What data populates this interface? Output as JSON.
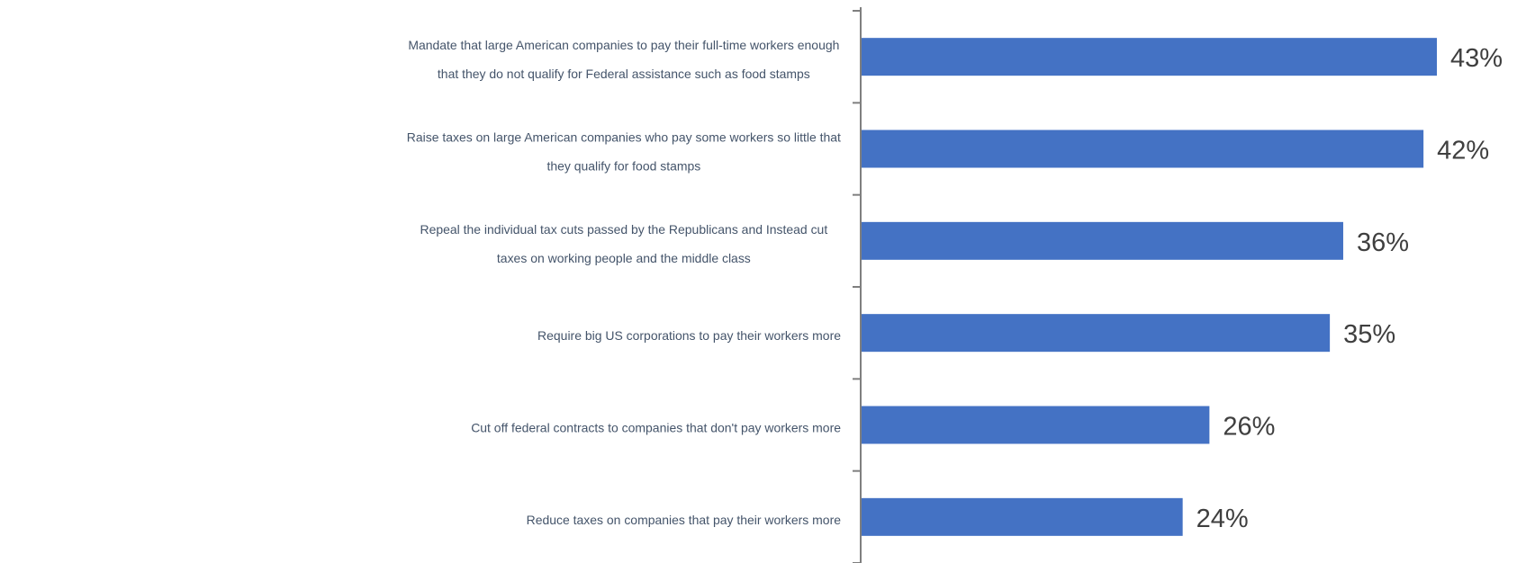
{
  "chart_data": {
    "type": "bar",
    "orientation": "horizontal",
    "categories": [
      [
        "Mandate that large American companies to pay their full-time workers enough",
        "that they do not qualify for Federal assistance such as food stamps"
      ],
      [
        "Raise taxes on large American companies who pay some workers so little that",
        "they qualify for food stamps"
      ],
      [
        "Repeal the individual tax cuts passed by the Republicans and Instead cut",
        "taxes on working people and the middle class"
      ],
      [
        "Require big US corporations to pay their workers more"
      ],
      [
        "Cut off federal contracts to companies that don't pay workers more"
      ],
      [
        "Reduce taxes on companies that pay their workers more"
      ]
    ],
    "values": [
      43,
      42,
      36,
      35,
      26,
      24
    ],
    "value_labels": [
      "43%",
      "42%",
      "36%",
      "35%",
      "26%",
      "24%"
    ],
    "title": "",
    "xlabel": "",
    "ylabel": "",
    "xlim": [
      0,
      43
    ],
    "grid": false,
    "legend": "none",
    "bar_color": "#4472c4",
    "axis_color": "#7f7f7f"
  }
}
